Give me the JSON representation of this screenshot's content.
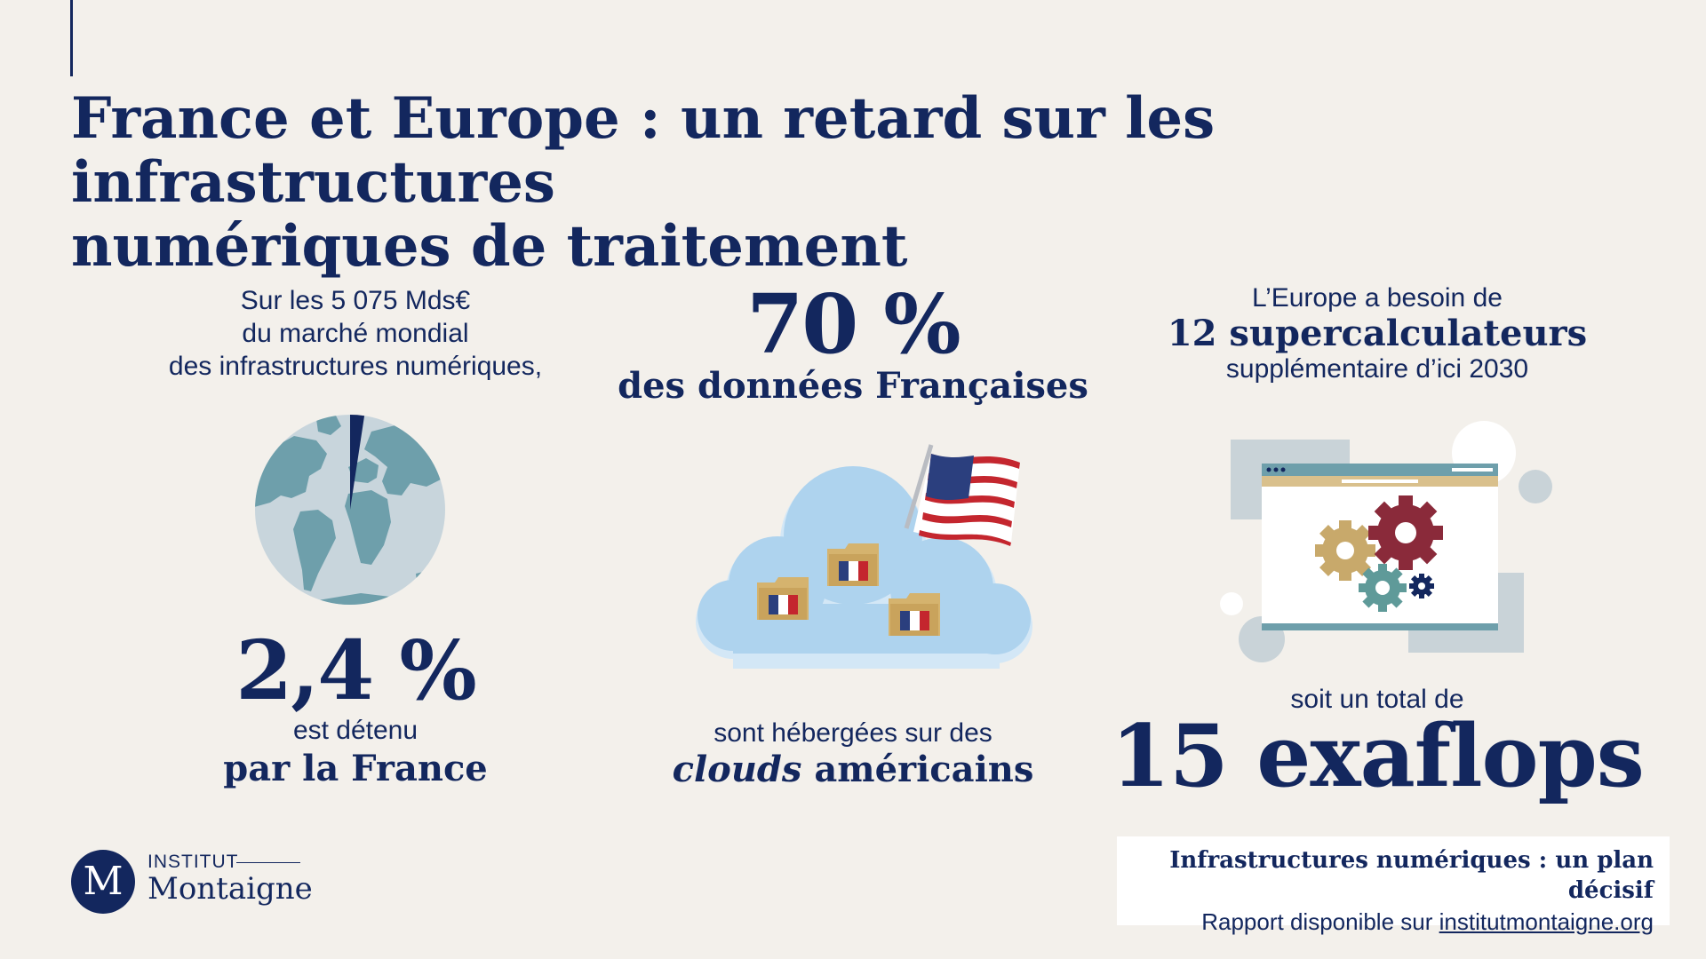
{
  "title": {
    "line1": "France et Europe : un retard sur les infrastructures",
    "line2": "numériques de traitement"
  },
  "col1": {
    "intro_line1": "Sur les 5 075 Mds€",
    "intro_line2": "du marché mondial",
    "intro_line3": "des infrastructures numériques,",
    "big_value": "2,4 %",
    "share_percent": 2.4,
    "sub_line1": "est détenu",
    "sub_line2": "par la France"
  },
  "col2": {
    "big_value": "70 %",
    "sub": "des données Françaises",
    "bottom_line1": "sont hébergées sur des",
    "bottom_italic": "clouds",
    "bottom_bold": " américains"
  },
  "col3": {
    "top_line1": "L’Europe a besoin de",
    "top_line2": "12 supercalculateurs",
    "top_line3": "supplémentaire d’ici 2030",
    "bottom_line1": "soit un total de",
    "bottom_big": "15 exaflops"
  },
  "logo": {
    "letter": "M",
    "small": "INSTITUT",
    "big": "Montaigne"
  },
  "callout": {
    "title": "Infrastructures numériques : un plan décisif",
    "text": "Rapport disponible sur ",
    "link": "institutmontaigne.org"
  },
  "icons": {
    "globe": "globe-icon",
    "cloud": "cloud-icon",
    "flag_us": "us-flag-icon",
    "folder_fr": "french-folder-icon",
    "window": "browser-window-icon",
    "gears": "gears-icon"
  },
  "colors": {
    "navy": "#13275e",
    "background": "#f3f0eb",
    "globe_ocean": "#c8d5dc",
    "globe_land": "#6e9fab",
    "cloud": "#aed3ee",
    "gear_gold": "#c8a96b",
    "gear_red": "#8a2a3a",
    "gear_teal": "#5f9a99"
  }
}
